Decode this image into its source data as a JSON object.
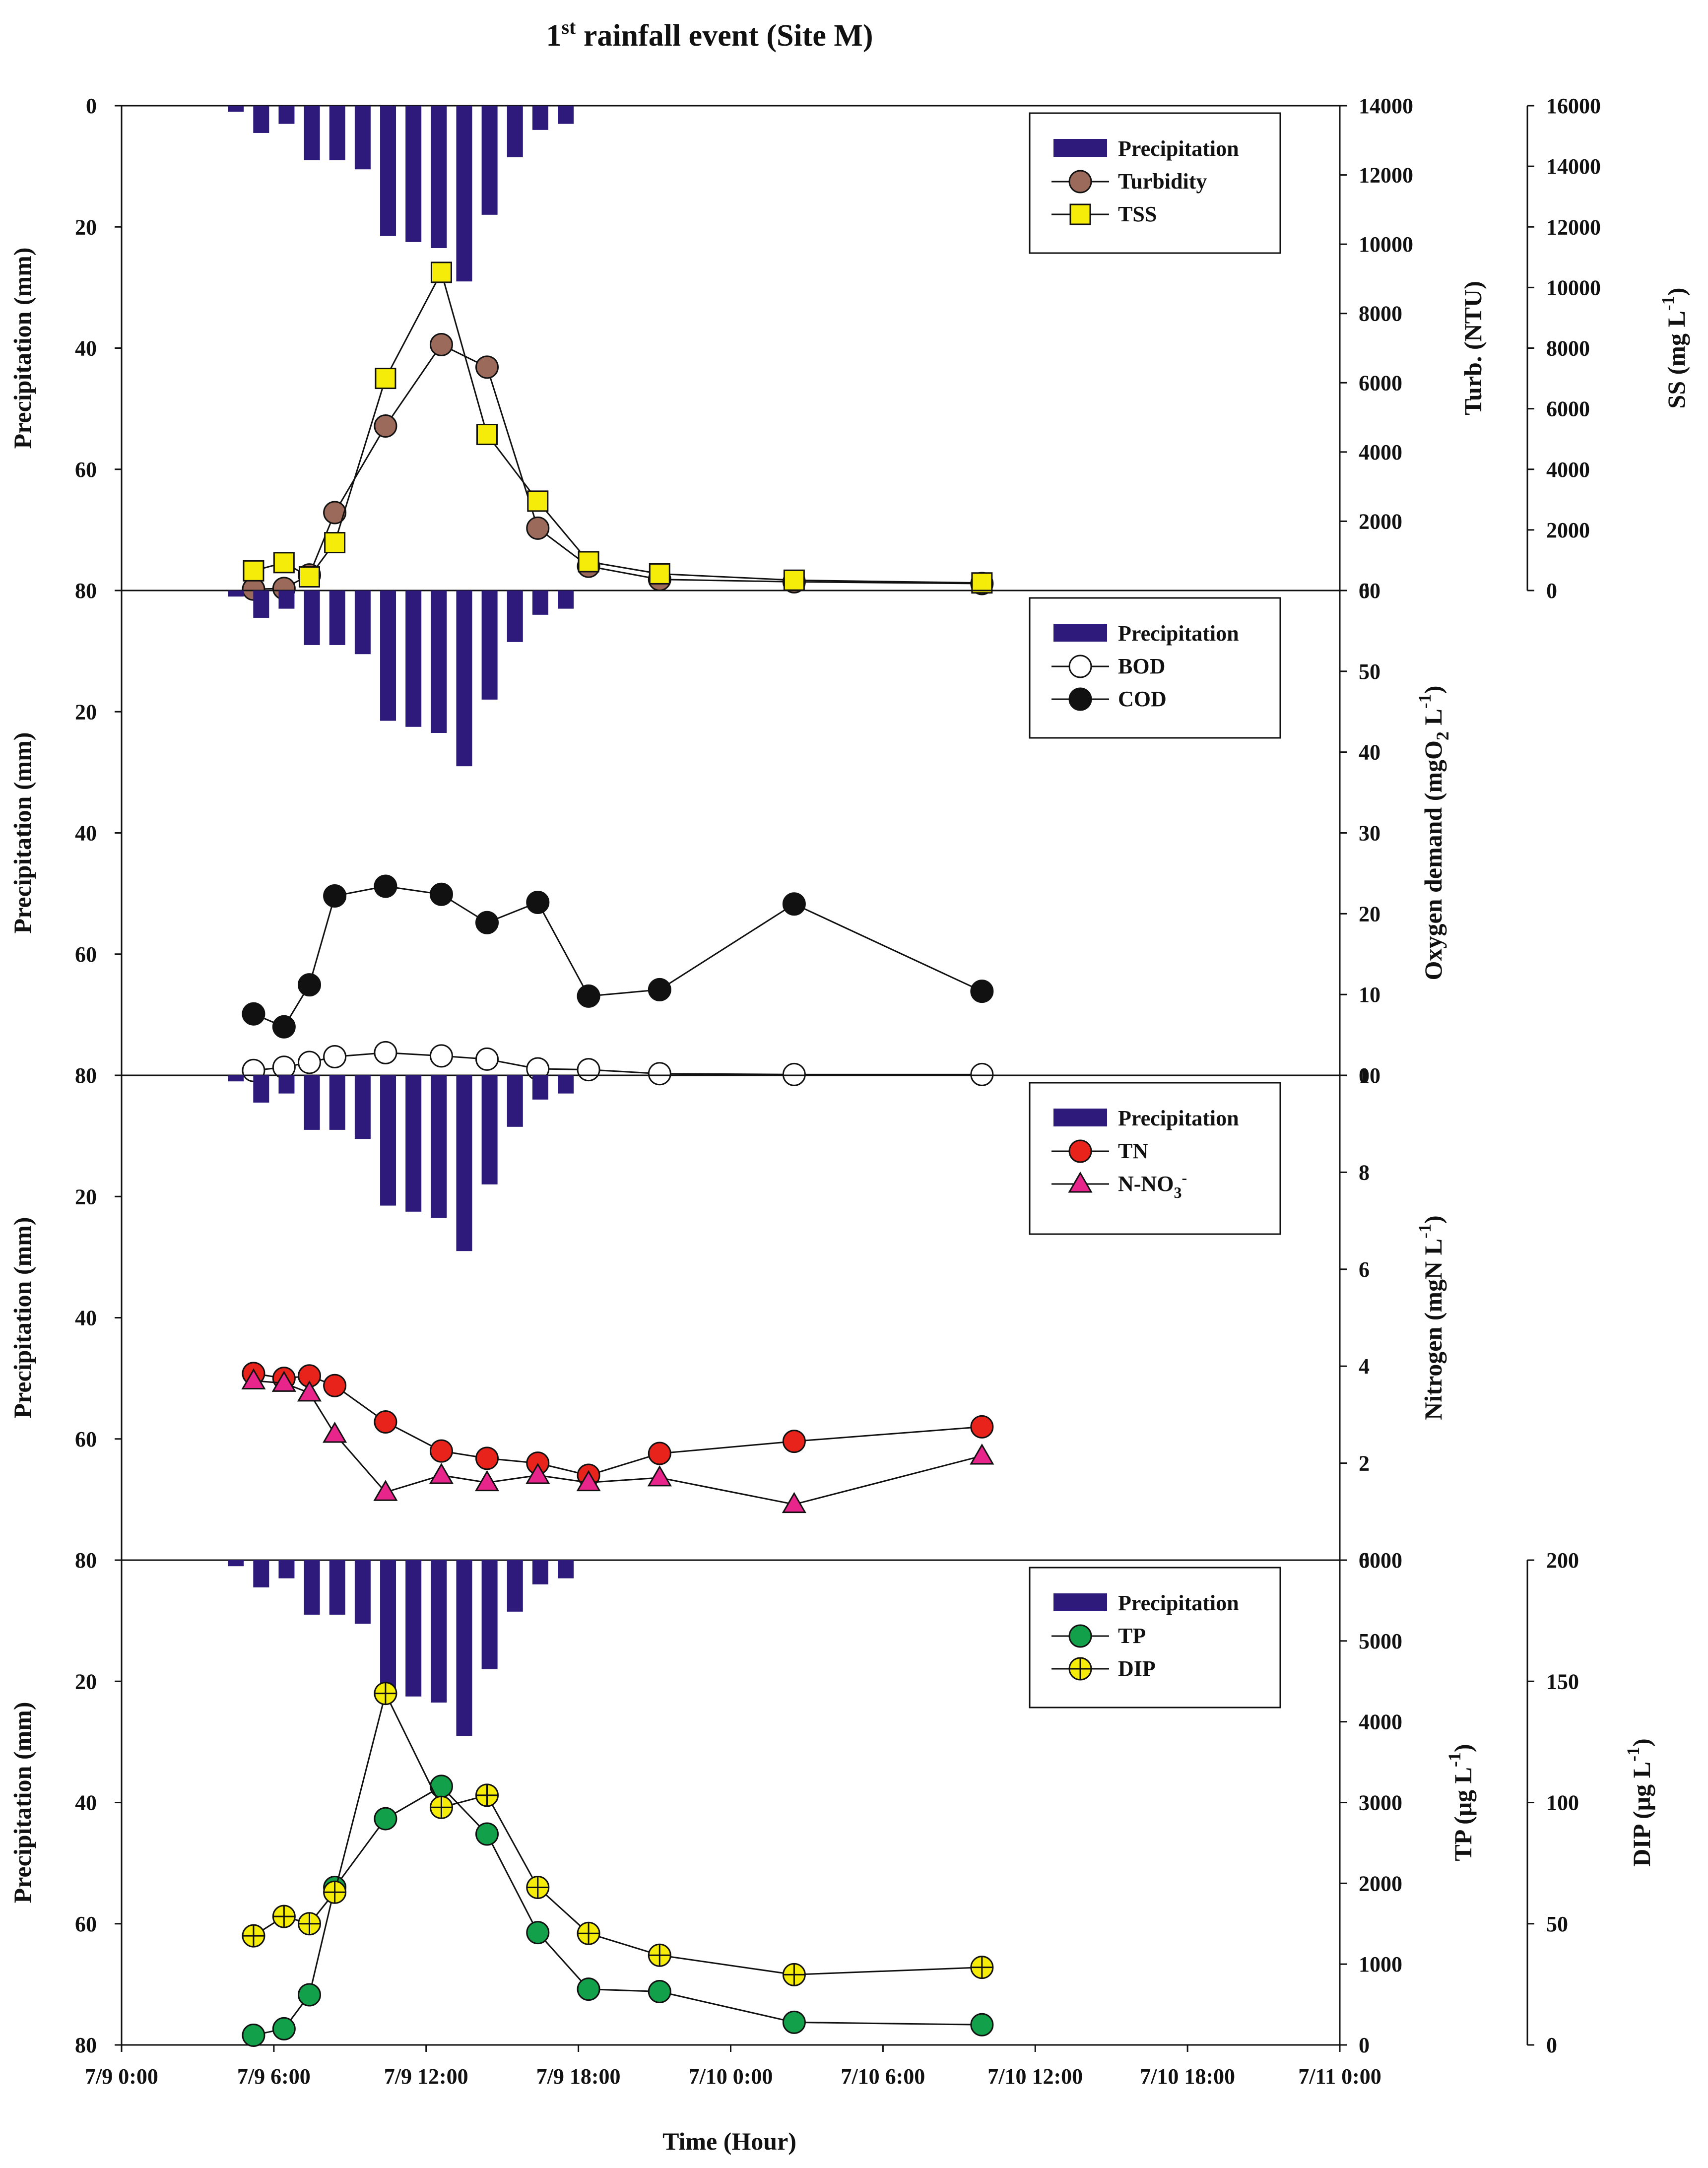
{
  "title": {
    "main": "1",
    "sup": "st",
    "rest": " rainfall event (Site M)"
  },
  "x_axis": {
    "title": "Time (Hour)",
    "ticks": [
      "7/9 0:00",
      "7/9 6:00",
      "7/9 12:00",
      "7/9 18:00",
      "7/10 0:00",
      "7/10 6:00",
      "7/10 12:00",
      "7/10 18:00",
      "7/11 0:00"
    ]
  },
  "colors": {
    "precipitation": "#2e1a7a",
    "turbidity": "#9b6a5a",
    "tss": "#f5ec0a",
    "bod": "#ffffff",
    "cod": "#111111",
    "tn": "#e8231c",
    "nno3": "#e8258a",
    "tp": "#13a04a",
    "dip": "#f5ec0a"
  },
  "chart_data": {
    "type": "line",
    "x_unit": "hours from 7/9 0:00",
    "x_range": [
      0,
      48
    ],
    "precipitation": {
      "name": "Precipitation",
      "unit": "mm",
      "axis_label": "Precipitation (mm)",
      "ylim_reversed": [
        0,
        80
      ],
      "ticks": [
        "0",
        "20",
        "40",
        "60",
        "80"
      ],
      "times": [
        4.5,
        5.5,
        6.5,
        7.5,
        8.5,
        9.5,
        10.5,
        11.5,
        12.5,
        13.5,
        14.5,
        15.5,
        16.5,
        17.5
      ],
      "values": [
        1,
        4.5,
        3,
        9,
        9,
        10.5,
        21.5,
        22.5,
        23.5,
        29,
        18,
        8.5,
        4,
        3
      ]
    },
    "panels": [
      {
        "id": "panel1",
        "legend": [
          "Precipitation",
          "Turbidity",
          "TSS"
        ],
        "right_axes": [
          {
            "label": "Turb. (NTU)",
            "min": 0,
            "max": 14000,
            "ticks": [
              "0",
              "2000",
              "4000",
              "6000",
              "8000",
              "10000",
              "12000",
              "14000"
            ]
          },
          {
            "label": "SS (mg L-1)",
            "min": 0,
            "max": 16000,
            "ticks": [
              "0",
              "2000",
              "4000",
              "6000",
              "8000",
              "10000",
              "12000",
              "14000",
              "16000"
            ]
          }
        ],
        "series": [
          {
            "name": "Turbidity",
            "axis": 0,
            "marker": "circle",
            "color_key": "turbidity",
            "x": [
              5.2,
              6.4,
              7.4,
              8.4,
              10.4,
              12.6,
              14.4,
              16.4,
              18.4,
              21.2,
              26.5,
              33.9
            ],
            "y": [
              40,
              60,
              450,
              2250,
              4750,
              7100,
              6450,
              1800,
              700,
              320,
              250,
              200
            ]
          },
          {
            "name": "TSS",
            "axis": 1,
            "marker": "square",
            "color_key": "tss",
            "x": [
              5.2,
              6.4,
              7.4,
              8.4,
              10.4,
              12.6,
              14.4,
              16.4,
              18.4,
              21.2,
              26.5,
              33.9
            ],
            "y": [
              650,
              920,
              450,
              1580,
              7000,
              10500,
              5150,
              2950,
              950,
              550,
              340,
              250
            ]
          }
        ]
      },
      {
        "id": "panel2",
        "legend": [
          "Precipitation",
          "BOD",
          "COD"
        ],
        "right_axes": [
          {
            "label": "Oxygen demand (mgO2 L-1)",
            "min": 0,
            "max": 60,
            "ticks": [
              "0",
              "10",
              "20",
              "30",
              "40",
              "50",
              "60"
            ]
          }
        ],
        "series": [
          {
            "name": "BOD",
            "axis": 0,
            "marker": "circle",
            "color_key": "bod",
            "x": [
              5.2,
              6.4,
              7.4,
              8.4,
              10.4,
              12.6,
              14.4,
              16.4,
              18.4,
              21.2,
              26.5,
              33.9
            ],
            "y": [
              0.6,
              1.0,
              1.6,
              2.3,
              2.8,
              2.4,
              2.0,
              0.8,
              0.7,
              0.2,
              0.1,
              0.1
            ]
          },
          {
            "name": "COD",
            "axis": 0,
            "marker": "circle",
            "color_key": "cod",
            "x": [
              5.2,
              6.4,
              7.4,
              8.4,
              10.4,
              12.6,
              14.4,
              16.4,
              18.4,
              21.2,
              26.5,
              33.9
            ],
            "y": [
              7.6,
              6.0,
              11.2,
              22.2,
              23.4,
              22.4,
              18.9,
              21.4,
              9.8,
              10.6,
              21.2,
              10.4
            ]
          }
        ]
      },
      {
        "id": "panel3",
        "legend": [
          "Precipitation",
          "TN",
          "N-NO3-"
        ],
        "right_axes": [
          {
            "label": "Nitrogen (mgN L-1)",
            "min": 0,
            "max": 10,
            "ticks": [
              "0",
              "2",
              "4",
              "6",
              "8",
              "10"
            ]
          }
        ],
        "series": [
          {
            "name": "TN",
            "axis": 0,
            "marker": "circle",
            "color_key": "tn",
            "x": [
              5.2,
              6.4,
              7.4,
              8.4,
              10.4,
              12.6,
              14.4,
              16.4,
              18.4,
              21.2,
              26.5,
              33.9
            ],
            "y": [
              3.85,
              3.75,
              3.8,
              3.6,
              2.85,
              2.25,
              2.1,
              2.0,
              1.75,
              2.2,
              2.45,
              2.75
            ]
          },
          {
            "name": "N-NO3-",
            "axis": 0,
            "marker": "triangle",
            "color_key": "nno3",
            "x": [
              5.2,
              6.4,
              7.4,
              8.4,
              10.4,
              12.6,
              14.4,
              16.4,
              18.4,
              21.2,
              26.5,
              33.9
            ],
            "y": [
              3.7,
              3.65,
              3.45,
              2.6,
              1.4,
              1.75,
              1.6,
              1.75,
              1.6,
              1.7,
              1.15,
              2.15
            ]
          }
        ]
      },
      {
        "id": "panel4",
        "legend": [
          "Precipitation",
          "TP",
          "DIP"
        ],
        "right_axes": [
          {
            "label": "TP (μg L-1)",
            "min": 0,
            "max": 6000,
            "ticks": [
              "0",
              "1000",
              "2000",
              "3000",
              "4000",
              "5000",
              "6000"
            ]
          },
          {
            "label": "DIP (μg L-1)",
            "min": 0,
            "max": 200,
            "ticks": [
              "0",
              "50",
              "100",
              "150",
              "200"
            ]
          }
        ],
        "series": [
          {
            "name": "TP",
            "axis": 0,
            "marker": "circle",
            "color_key": "tp",
            "x": [
              5.2,
              6.4,
              7.4,
              8.4,
              10.4,
              12.6,
              14.4,
              16.4,
              18.4,
              21.2,
              26.5,
              33.9
            ],
            "y": [
              120,
              200,
              620,
              1950,
              2800,
              3200,
              2610,
              1390,
              690,
              660,
              280,
              250
            ]
          },
          {
            "name": "DIP",
            "axis": 1,
            "marker": "crosscircle",
            "color_key": "dip",
            "x": [
              5.2,
              6.4,
              7.4,
              8.4,
              10.4,
              12.6,
              14.4,
              16.4,
              18.4,
              21.2,
              26.5,
              33.9
            ],
            "y": [
              45,
              53,
              50,
              63,
              145,
              98,
              103,
              65,
              46,
              37,
              29,
              32
            ]
          }
        ]
      }
    ]
  }
}
